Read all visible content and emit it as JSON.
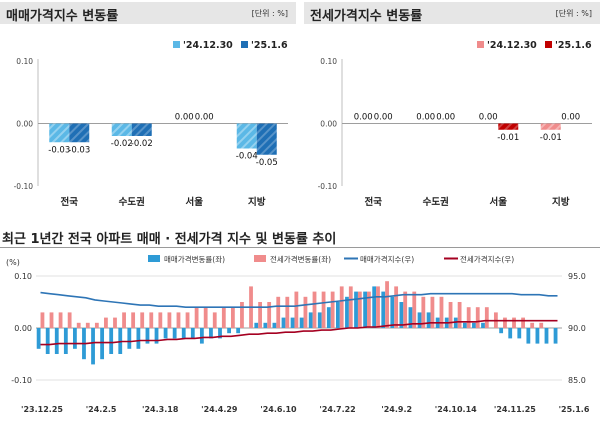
{
  "colors": {
    "sale_light": "#5bb8e6",
    "sale_dark": "#1f6fb5",
    "jeonse_light": "#f08c8c",
    "jeonse_dark": "#c00000",
    "sale_bar": "#2e9bd6",
    "sale_index_line": "#2e75b6",
    "jeonse_index_line": "#a50021",
    "grid": "#d0d0d0"
  },
  "left_panel": {
    "title": "매매가격지수 변동률",
    "unit": "[단위 : %]"
  },
  "right_panel": {
    "title": "전세가격지수 변동률",
    "unit": "[단위 : %]"
  },
  "bottom_panel": {
    "title": "최근 1년간 전국 아파트 매매 · 전세가격 지수 및 변동률 추이"
  },
  "chart_data": [
    {
      "type": "bar",
      "title": "매매가격지수 변동률",
      "unit": "[단위 : %]",
      "categories": [
        "전국",
        "수도권",
        "서울",
        "지방"
      ],
      "series": [
        {
          "name": "'24.12.30",
          "values": [
            -0.03,
            -0.02,
            0.0,
            -0.04
          ]
        },
        {
          "name": "'25.1.6",
          "values": [
            -0.03,
            -0.02,
            0.0,
            -0.05
          ]
        }
      ],
      "value_labels": [
        [
          "-0.03",
          "-0.02",
          "0.00",
          "-0.04"
        ],
        [
          "-0.03",
          "-0.02",
          "0.00",
          "-0.05"
        ]
      ],
      "ylim": [
        -0.1,
        0.1
      ],
      "yticks": [
        "0.10",
        "0.00",
        "-0.10"
      ],
      "legend_position": "top-right",
      "grid": true
    },
    {
      "type": "bar",
      "title": "전세가격지수 변동률",
      "unit": "[단위 : %]",
      "categories": [
        "전국",
        "수도권",
        "서울",
        "지방"
      ],
      "series": [
        {
          "name": "'24.12.30",
          "values": [
            0.0,
            0.0,
            0.0,
            -0.01
          ]
        },
        {
          "name": "'25.1.6",
          "values": [
            0.0,
            0.0,
            -0.01,
            0.0
          ]
        }
      ],
      "value_labels": [
        [
          "0.00",
          "0.00",
          "0.00",
          "-0.01"
        ],
        [
          "0.00",
          "0.00",
          "-0.01",
          "0.00"
        ]
      ],
      "ylim": [
        -0.1,
        0.1
      ],
      "yticks": [
        "0.10",
        "0.00",
        "-0.10"
      ],
      "legend_position": "top-right",
      "grid": true
    },
    {
      "type": "bar",
      "title": "최근 1년간 전국 아파트 매매 · 전세가격 지수 및 변동률 추이",
      "left_axis_label": "(%)",
      "left_yticks": [
        "0.10",
        "0.00",
        "-0.10"
      ],
      "right_yticks": [
        "95.0",
        "90.0",
        "85.0"
      ],
      "ylim": [
        -0.1,
        0.1
      ],
      "ylim_right": [
        85.0,
        95.0
      ],
      "x_tick_labels": [
        "'23.12.25",
        "'24.2.5",
        "'24.3.18",
        "'24.4.29",
        "'24.6.10",
        "'24.7.22",
        "'24.9.2",
        "'24.10.14",
        "'24.11.25",
        "'25.1.6"
      ],
      "legend": [
        "매매가격변동률(좌)",
        "전세가격변동률(좌)",
        "매매가격지수(우)",
        "전세가격지수(우)"
      ],
      "legend_position": "top",
      "series": [
        {
          "name": "매매가격변동률(좌)",
          "kind": "bar",
          "axis": "left",
          "values": [
            -0.04,
            -0.05,
            -0.05,
            -0.05,
            -0.04,
            -0.06,
            -0.07,
            -0.06,
            -0.05,
            -0.05,
            -0.04,
            -0.04,
            -0.03,
            -0.03,
            -0.02,
            -0.02,
            -0.02,
            -0.02,
            -0.03,
            -0.02,
            -0.02,
            -0.01,
            -0.01,
            0.0,
            0.01,
            0.01,
            0.01,
            0.02,
            0.02,
            0.02,
            0.03,
            0.03,
            0.04,
            0.05,
            0.06,
            0.07,
            0.07,
            0.08,
            0.07,
            0.06,
            0.05,
            0.04,
            0.03,
            0.03,
            0.02,
            0.02,
            0.02,
            0.01,
            0.01,
            0.01,
            0.0,
            -0.01,
            -0.02,
            -0.02,
            -0.03,
            -0.03,
            -0.03,
            -0.03
          ]
        },
        {
          "name": "전세가격변동률(좌)",
          "kind": "bar",
          "axis": "left",
          "values": [
            0.03,
            0.03,
            0.03,
            0.03,
            0.01,
            0.01,
            0.01,
            0.02,
            0.02,
            0.03,
            0.03,
            0.03,
            0.03,
            0.03,
            0.03,
            0.03,
            0.03,
            0.04,
            0.04,
            0.03,
            0.04,
            0.04,
            0.05,
            0.08,
            0.05,
            0.05,
            0.06,
            0.06,
            0.07,
            0.06,
            0.07,
            0.07,
            0.07,
            0.08,
            0.08,
            0.07,
            0.07,
            0.08,
            0.09,
            0.08,
            0.07,
            0.07,
            0.06,
            0.06,
            0.06,
            0.05,
            0.05,
            0.04,
            0.04,
            0.04,
            0.03,
            0.02,
            0.02,
            0.02,
            0.01,
            0.01,
            0.0,
            0.0
          ]
        },
        {
          "name": "매매가격지수(우)",
          "kind": "line",
          "axis": "right",
          "values": [
            93.4,
            93.3,
            93.2,
            93.1,
            93.0,
            92.9,
            92.7,
            92.6,
            92.5,
            92.4,
            92.3,
            92.2,
            92.2,
            92.1,
            92.1,
            92.1,
            92.0,
            92.0,
            92.0,
            92.0,
            92.0,
            92.0,
            92.0,
            92.0,
            92.0,
            92.0,
            92.1,
            92.1,
            92.1,
            92.2,
            92.3,
            92.4,
            92.5,
            92.6,
            92.7,
            92.8,
            92.9,
            93.0,
            93.0,
            93.1,
            93.2,
            93.2,
            93.2,
            93.3,
            93.3,
            93.3,
            93.3,
            93.3,
            93.3,
            93.3,
            93.3,
            93.3,
            93.3,
            93.2,
            93.2,
            93.2,
            93.1,
            93.1
          ]
        },
        {
          "name": "전세가격지수(우)",
          "kind": "line",
          "axis": "right",
          "values": [
            88.4,
            88.4,
            88.5,
            88.5,
            88.5,
            88.5,
            88.6,
            88.6,
            88.6,
            88.7,
            88.7,
            88.8,
            88.8,
            88.8,
            88.9,
            88.9,
            89.0,
            89.0,
            89.1,
            89.1,
            89.2,
            89.2,
            89.3,
            89.4,
            89.4,
            89.5,
            89.5,
            89.6,
            89.6,
            89.7,
            89.7,
            89.8,
            89.8,
            89.9,
            90.0,
            90.0,
            90.1,
            90.1,
            90.2,
            90.3,
            90.3,
            90.4,
            90.4,
            90.5,
            90.5,
            90.5,
            90.6,
            90.6,
            90.6,
            90.7,
            90.7,
            90.7,
            90.7,
            90.7,
            90.7,
            90.7,
            90.7,
            90.7
          ]
        }
      ]
    }
  ]
}
